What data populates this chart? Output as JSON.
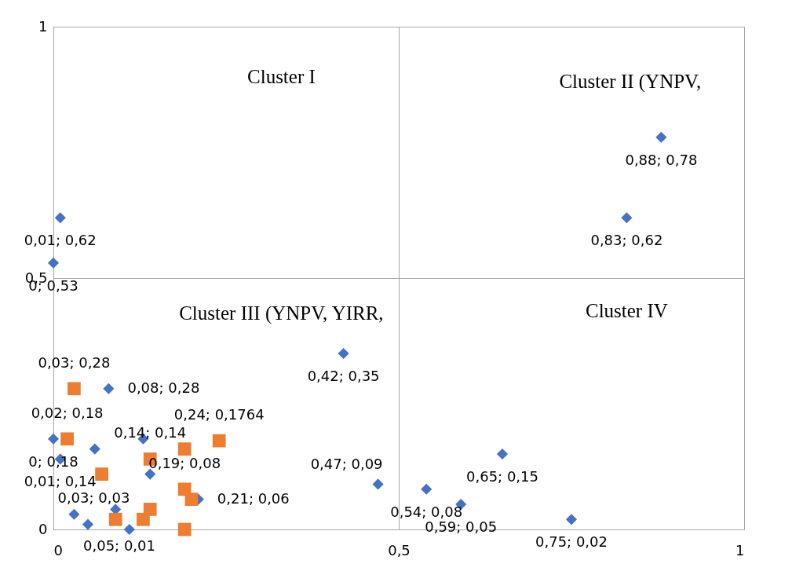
{
  "chart_data": {
    "type": "scatter",
    "xlim": [
      0,
      1
    ],
    "ylim": [
      0,
      1
    ],
    "xticks": [
      0,
      {
        "value": 0.5,
        "label": "0,5"
      },
      1
    ],
    "yticks": [
      0,
      {
        "value": 0.5,
        "label": "0,5"
      },
      1
    ],
    "grid": true,
    "annotations": [
      "Cluster I",
      "Cluster II (YNPV,",
      "Cluster III (YNPV, YIRR,",
      "Cluster IV"
    ],
    "series": [
      {
        "color": "#4472c4",
        "marker": "diamond",
        "x": [
          0.88,
          0.83,
          0.01,
          0,
          0.42,
          0.65,
          0.47,
          0.54,
          0.59,
          0.75,
          0.08,
          0,
          0.01,
          0.06,
          0.13,
          0.03,
          0.05,
          0.11,
          0.09,
          0.14,
          0.21
        ],
        "values": [
          0.78,
          0.62,
          0.62,
          0.53,
          0.35,
          0.15,
          0.09,
          0.08,
          0.05,
          0.02,
          0.28,
          0.18,
          0.14,
          0.16,
          0.18,
          0.03,
          0.01,
          0,
          0.04,
          0.11,
          0.06
        ],
        "value_labels": [
          "0,88; 0,78",
          "0,83; 0,62",
          "0,01; 0,62",
          "0; 0,53",
          "0,42; 0,35",
          "0,65; 0,15",
          "0,47; 0,09",
          "0,54; 0,08",
          "0,59; 0,05",
          "0,75; 0,02",
          "0,08; 0,28",
          "0; 0,18",
          "0,01; 0,14",
          null,
          null,
          "0,03; 0,03",
          "0,05; 0,01",
          null,
          null,
          null,
          "0,21; 0,06"
        ]
      },
      {
        "color": "#ed7d31",
        "marker": "square",
        "x": [
          0.03,
          0.02,
          0.07,
          0.09,
          0.14,
          0.14,
          0.19,
          0.24,
          0.19,
          0.2,
          0.19,
          0.13
        ],
        "values": [
          0.28,
          0.18,
          0.11,
          0.02,
          0.04,
          0.14,
          0.16,
          0.1764,
          0.08,
          0.06,
          0,
          0.02
        ],
        "value_labels": [
          "0,03; 0,28",
          "0,02; 0,18",
          null,
          null,
          null,
          "0,14; 0,14",
          null,
          "0,24; 0,1764",
          "0,19; 0,08",
          null,
          null,
          null
        ]
      }
    ]
  }
}
